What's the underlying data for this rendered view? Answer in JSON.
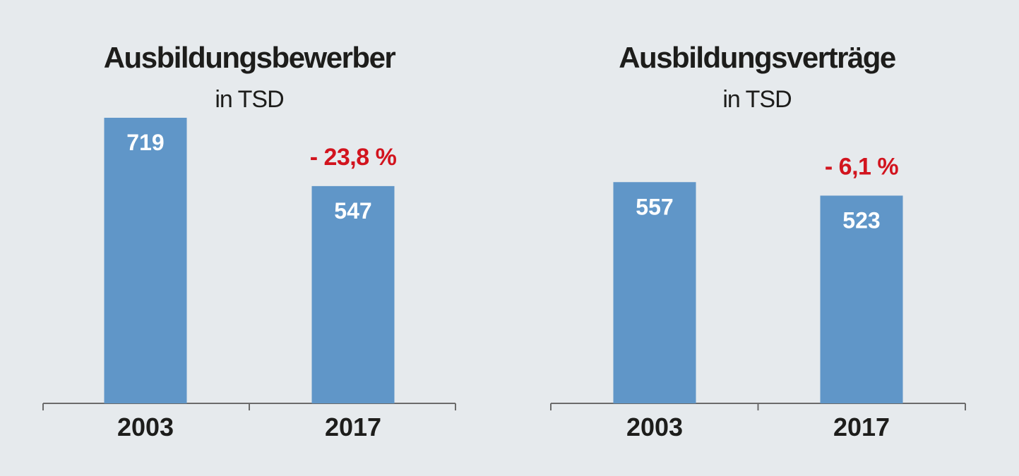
{
  "colors": {
    "background": "#e6eaed",
    "bar": "#6096c8",
    "bar_label": "#ffffff",
    "change": "#d2141e",
    "text": "#1d1d1b",
    "axis": "#6b6b6b"
  },
  "chart_data": [
    {
      "type": "bar",
      "title": "Ausbildungsbewerber",
      "subtitle": "in TSD",
      "categories": [
        "2003",
        "2017"
      ],
      "values": [
        719,
        547
      ],
      "value_labels": [
        "719",
        "547"
      ],
      "annotation": "- 23,8 %",
      "ylim": [
        0,
        719
      ],
      "grid": false,
      "legend": "none"
    },
    {
      "type": "bar",
      "title": "Ausbildungsverträge",
      "subtitle": "in TSD",
      "categories": [
        "2003",
        "2017"
      ],
      "values": [
        557,
        523
      ],
      "value_labels": [
        "557",
        "523"
      ],
      "annotation": "- 6,1 %",
      "ylim": [
        0,
        719
      ],
      "grid": false,
      "legend": "none"
    }
  ]
}
